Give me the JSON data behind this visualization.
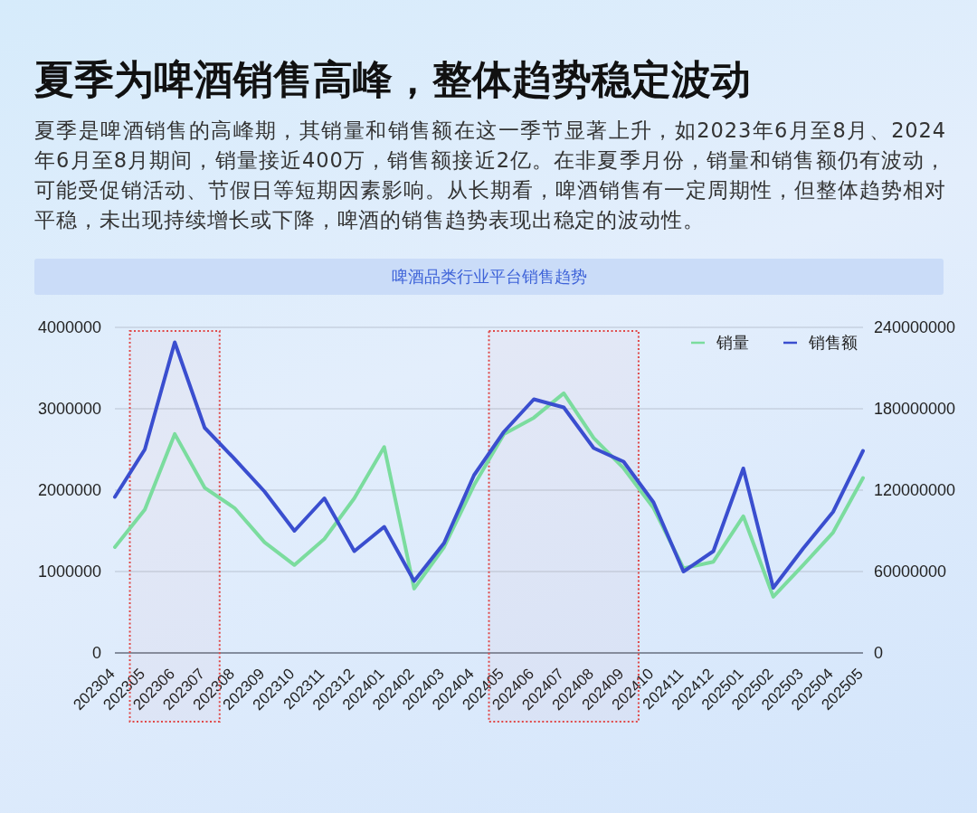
{
  "chart_data": {
    "type": "line",
    "title": "夏季为啤酒销售高峰，整体趋势稳定波动",
    "subtitle": "夏季是啤酒销售的高峰期，其销量和销售额在这一季节显著上升，如2023年6月至8月、2024年6月至8月期间，销量接近400万，销售额接近2亿。在非夏季月份，销量和销售额仍有波动，可能受促销活动、节假日等短期因素影响。从长期看，啤酒销售有一定周期性，但整体趋势相对平稳，未出现持续增长或下降，啤酒的销售趋势表现出稳定的波动性。",
    "annotations": [
      "啤酒品类行业平台销售趋势"
    ],
    "categories": [
      "202304",
      "202305",
      "202306",
      "202307",
      "202308",
      "202309",
      "202310",
      "202311",
      "202312",
      "202401",
      "202402",
      "202403",
      "202404",
      "202405",
      "202406",
      "202407",
      "202408",
      "202409",
      "202410",
      "202411",
      "202412",
      "202501",
      "202502",
      "202503",
      "202504",
      "202505"
    ],
    "series": [
      {
        "name": "销量",
        "color": "#7bdc9e",
        "values": [
          1300000,
          1760000,
          2690000,
          2030000,
          1780000,
          1360000,
          1080000,
          1400000,
          1900000,
          2530000,
          790000,
          1300000,
          2060000,
          2690000,
          2890000,
          3190000,
          2640000,
          2270000,
          1780000,
          1040000,
          1120000,
          1680000,
          690000,
          1080000,
          1480000,
          2150000
        ]
      },
      {
        "name": "销售额",
        "color": "#3a4ecf",
        "axis": "y2",
        "values": [
          115000000,
          150000000,
          229000000,
          166000000,
          143000000,
          119000000,
          90000000,
          114000000,
          75000000,
          93000000,
          53000000,
          81000000,
          131000000,
          163000000,
          187000000,
          181000000,
          151000000,
          141000000,
          111000000,
          60000000,
          75000000,
          136000000,
          48000000,
          77000000,
          104000000,
          149000000
        ]
      }
    ],
    "ylim": [
      0,
      4000000
    ],
    "yticks": [
      0,
      1000000,
      2000000,
      3000000,
      4000000
    ],
    "y2lim": [
      0,
      240000000
    ],
    "y2ticks": [
      0,
      60000000,
      120000000,
      180000000,
      240000000
    ],
    "grid": "y",
    "legend": "top right",
    "line_style": "solid",
    "bands": [
      {
        "axis": "x",
        "from": "202305",
        "to": "202307",
        "color": "#e04848"
      },
      {
        "axis": "x",
        "from": "202405",
        "to": "202409",
        "color": "#e04848"
      }
    ]
  }
}
